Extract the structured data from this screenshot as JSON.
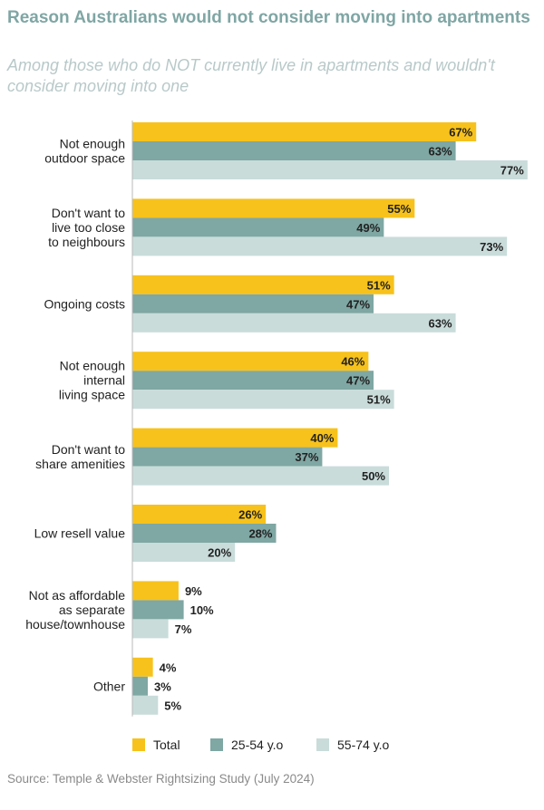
{
  "title": "Reason Australians would not consider moving into apartments",
  "subtitle": "Among those who do NOT currently live in apartments and wouldn't consider moving into one",
  "source": "Source: Temple & Webster Rightsizing Study (July 2024)",
  "colors": {
    "total": "#f7c21b",
    "age_25_54": "#7fa7a3",
    "age_55_74": "#c9dcda",
    "title": "#7fa6a4",
    "subtitle": "#b8c9c8",
    "axis": "#b9b9b9",
    "text": "#222222"
  },
  "chart_data": {
    "type": "bar",
    "orientation": "horizontal",
    "categories": [
      [
        "Not enough",
        "outdoor space"
      ],
      [
        "Don't want to",
        "live too close",
        "to neighbours"
      ],
      [
        "Ongoing costs"
      ],
      [
        "Not enough",
        "internal",
        "living space"
      ],
      [
        "Don't want to",
        "share amenities"
      ],
      [
        "Low resell value"
      ],
      [
        "Not as affordable",
        "as separate",
        "house/townhouse"
      ],
      [
        "Other"
      ]
    ],
    "series": [
      {
        "name": "Total",
        "values": [
          67,
          55,
          51,
          46,
          40,
          26,
          9,
          4
        ],
        "color": "#f7c21b"
      },
      {
        "name": "25-54 y.o",
        "values": [
          63,
          49,
          47,
          47,
          37,
          28,
          10,
          3
        ],
        "color": "#7fa7a3"
      },
      {
        "name": "55-74 y.o",
        "values": [
          77,
          73,
          63,
          51,
          50,
          20,
          7,
          5
        ],
        "color": "#c9dcda"
      }
    ],
    "value_suffix": "%",
    "legend_position": "bottom",
    "xlim": [
      0,
      100
    ],
    "grid": false
  }
}
